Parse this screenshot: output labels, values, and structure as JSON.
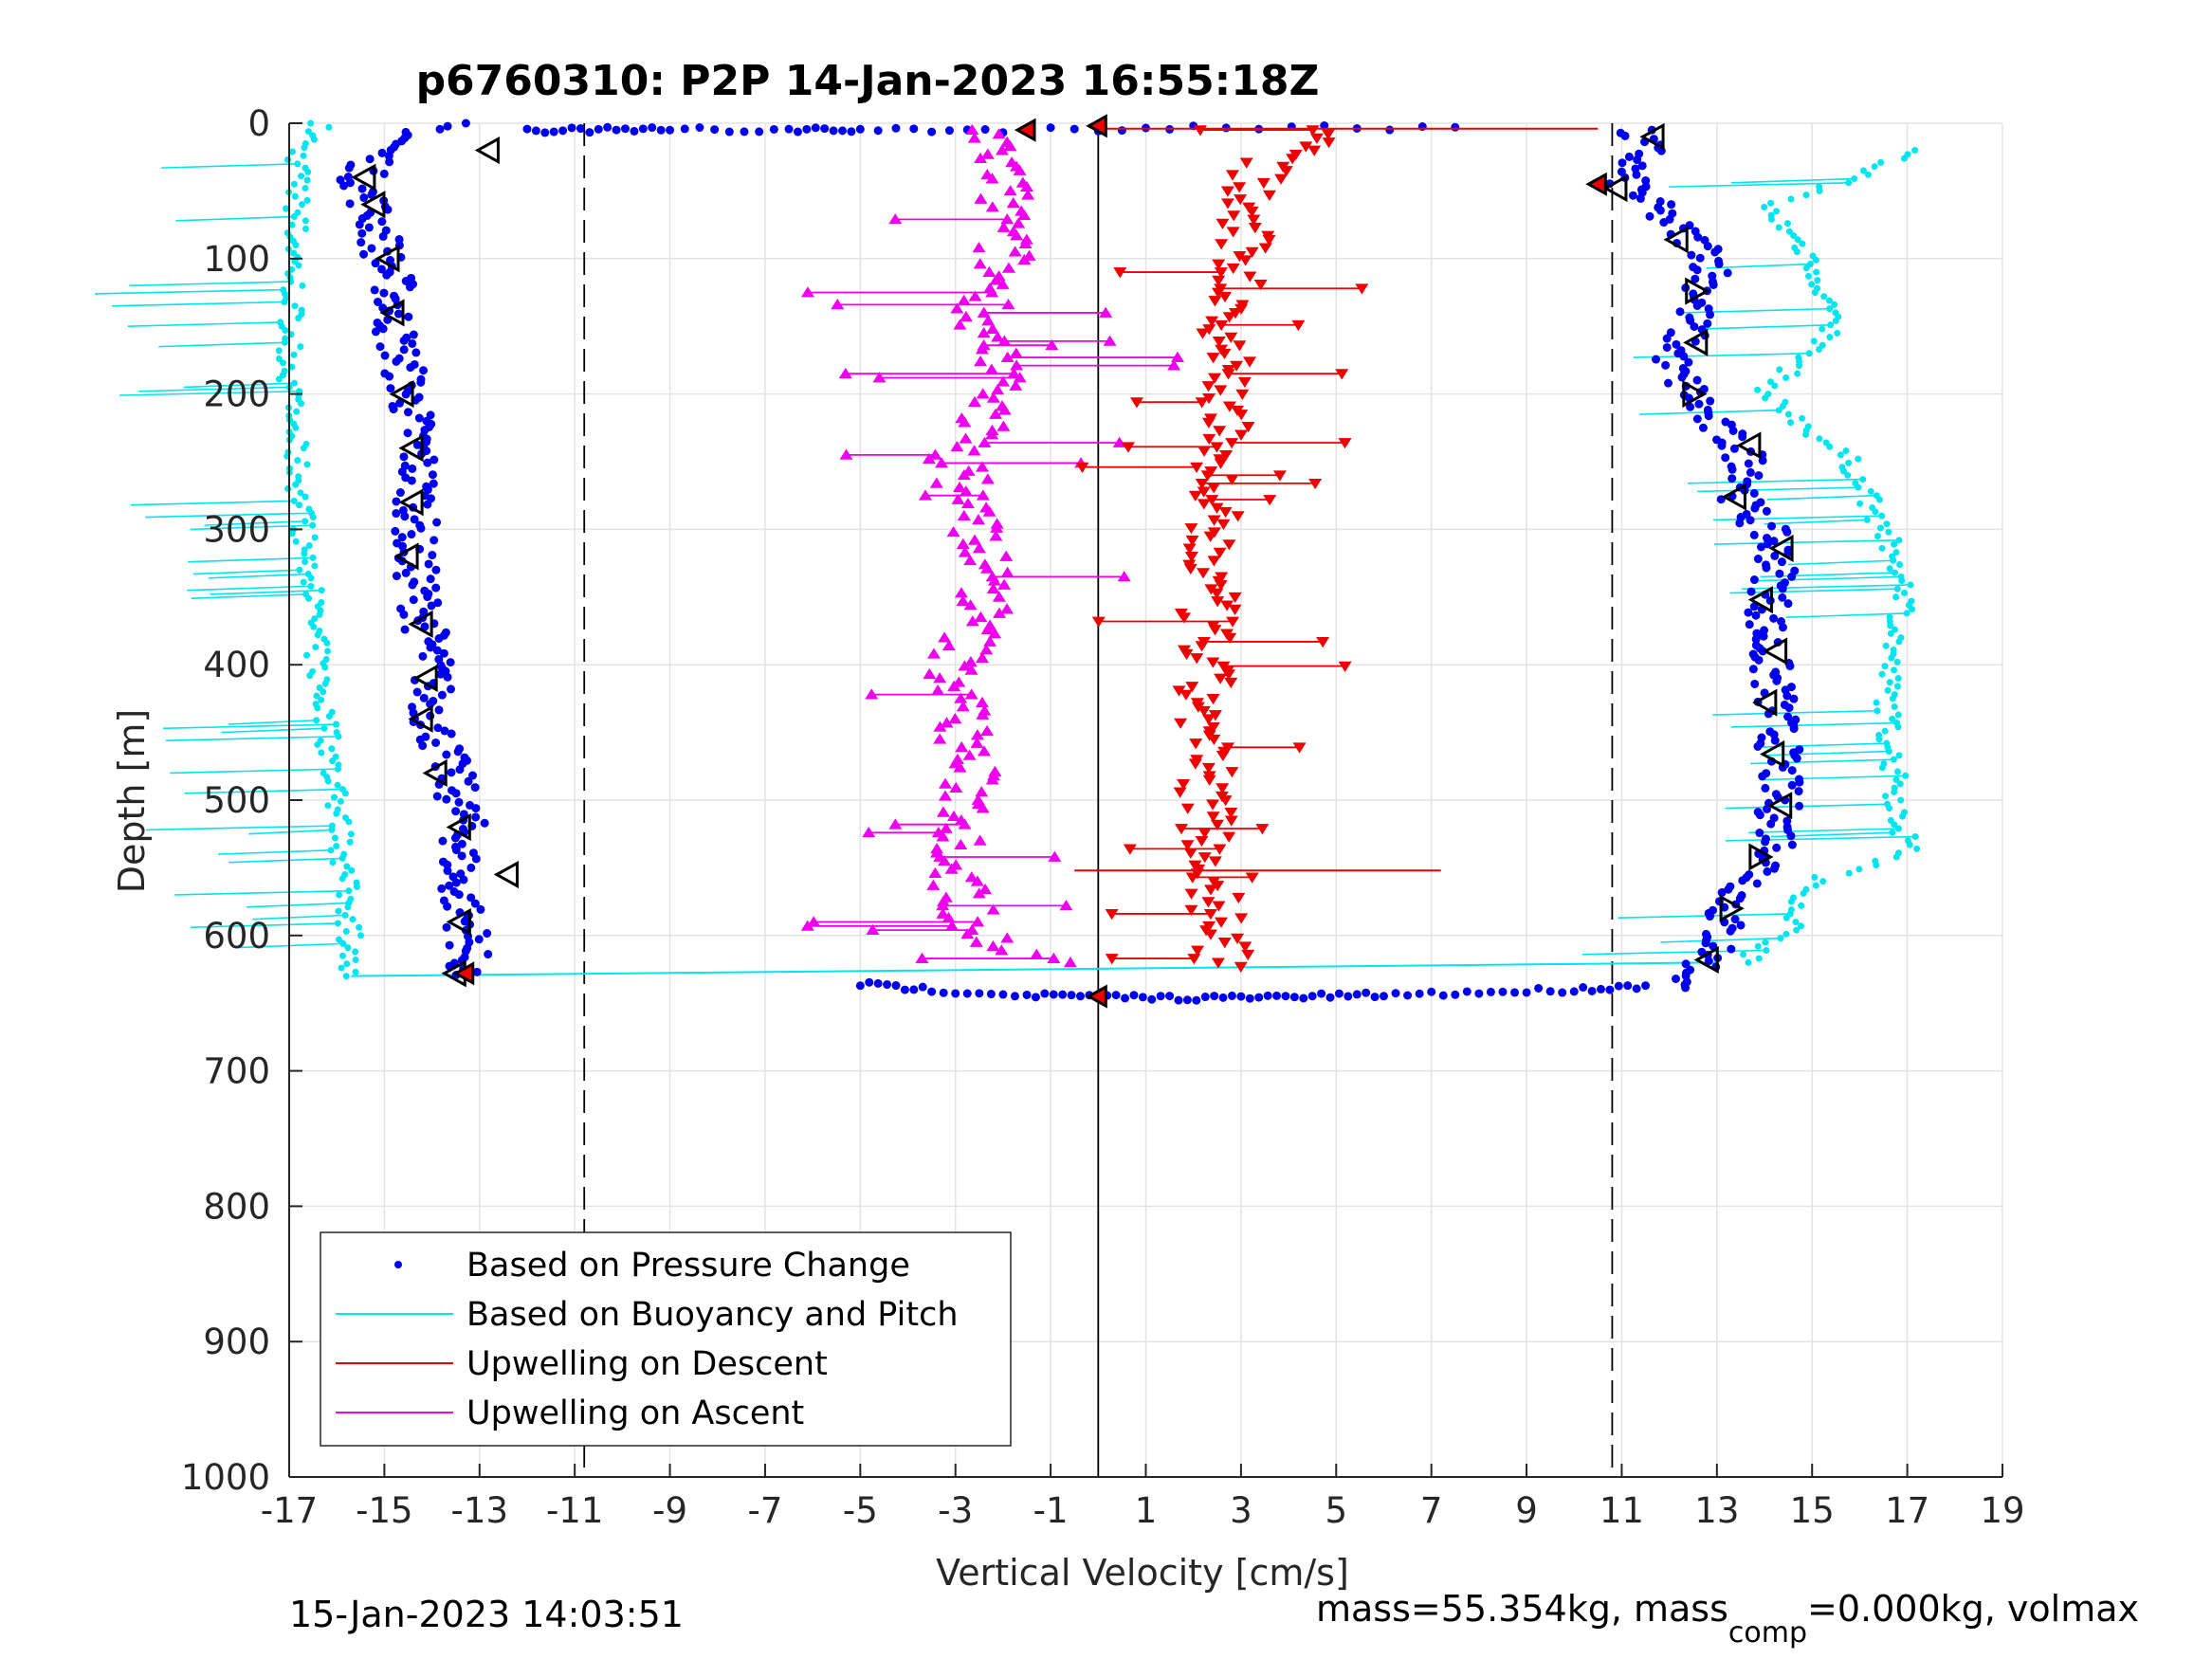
{
  "chart_data": {
    "type": "scatter",
    "title": "p6760310: P2P 14-Jan-2023 16:55:18Z",
    "xlabel": "Vertical Velocity [cm/s]",
    "ylabel": "Depth [m]",
    "xlim": [
      -17,
      19
    ],
    "ylim": [
      0,
      1000
    ],
    "y_reversed": true,
    "grid": true,
    "xticks": [
      -17,
      -15,
      -13,
      -11,
      -9,
      -7,
      -5,
      -3,
      -1,
      1,
      3,
      5,
      7,
      9,
      11,
      13,
      15,
      17,
      19
    ],
    "yticks": [
      0,
      100,
      200,
      300,
      400,
      500,
      600,
      700,
      800,
      900,
      1000
    ],
    "reference_lines": {
      "solid_x": 0,
      "dashed_x": [
        -10.8,
        10.8
      ]
    },
    "legend": {
      "placement": "bottom-left",
      "entries": [
        {
          "label": "Based on Pressure Change",
          "color": "#0000ee",
          "style": "dot"
        },
        {
          "label": "Based on Buoyancy and Pitch",
          "color": "#00e5ee",
          "style": "line"
        },
        {
          "label": "Upwelling on Descent",
          "color": "#ee0000",
          "style": "line"
        },
        {
          "label": "Upwelling on Ascent",
          "color": "#ee00ee",
          "style": "line"
        }
      ]
    },
    "series": [
      {
        "name": "Based on Pressure Change",
        "color": "#0000ee",
        "dives": [
          {
            "leg": "descent",
            "depth": [
              0,
              10,
              20,
              40,
              60,
              80,
              100,
              120,
              150,
              180,
              200,
              240,
              280,
              320,
              360,
              400,
              440,
              480,
              520,
              560,
              600,
              630
            ],
            "velocity": [
              -13.5,
              -14.5,
              -15.0,
              -15.5,
              -15.3,
              -15.1,
              -15.0,
              -14.8,
              -14.8,
              -14.6,
              -14.5,
              -14.3,
              -14.3,
              -14.4,
              -14.2,
              -14.0,
              -14.0,
              -13.6,
              -13.3,
              -13.5,
              -13.2,
              -13.3
            ]
          },
          {
            "leg": "ascent",
            "depth": [
              640,
              630,
              610,
              580,
              540,
              500,
              460,
              420,
              380,
              340,
              320,
              300,
              280,
              260,
              240,
              220,
              200,
              180,
              160,
              140,
              120,
              100,
              80,
              60,
              40,
              20,
              5
            ],
            "velocity": [
              12.0,
              12.5,
              13.0,
              13.2,
              14.3,
              14.3,
              14.3,
              14.2,
              14.0,
              14.2,
              14.3,
              14.0,
              13.5,
              13.8,
              13.5,
              12.8,
              12.5,
              12.0,
              12.3,
              12.5,
              12.8,
              13.0,
              12.2,
              11.6,
              11.0,
              11.5,
              11.2
            ]
          },
          {
            "leg": "turnaround",
            "depth": [
              636,
              640,
              644,
              645,
              646,
              646,
              645,
              644,
              642,
              640,
              637
            ],
            "velocity": [
              -5.0,
              -3.5,
              -1.5,
              0.0,
              1.5,
              3.0,
              4.5,
              6.0,
              8.0,
              10.0,
              11.5
            ]
          },
          {
            "leg": "surface",
            "depth": [
              5,
              5,
              5,
              5,
              5,
              5,
              3,
              3
            ],
            "velocity": [
              -12.0,
              -10.5,
              -9.0,
              -6.5,
              -5.0,
              -2.0,
              2.0,
              7.5
            ]
          }
        ]
      },
      {
        "name": "Based on Buoyancy and Pitch",
        "color": "#00e5ee",
        "dives": [
          {
            "leg": "descent",
            "depth": [
              0,
              20,
              200,
              300,
              400,
              500,
              600,
              630
            ],
            "velocity": [
              -16.3,
              -16.8,
              -17.0,
              -16.7,
              -16.4,
              -16.0,
              -15.7,
              -15.8
            ]
          },
          {
            "leg": "ascent",
            "depth": [
              620,
              600,
              560,
              540,
              500,
              450,
              400,
              350,
              300,
              250,
              200,
              150,
              100,
              60,
              40,
              20
            ],
            "velocity": [
              13.5,
              14.5,
              15.0,
              17.0,
              16.8,
              16.6,
              16.6,
              17.0,
              16.5,
              15.8,
              14.0,
              15.5,
              15.0,
              14.0,
              16.0,
              17.0
            ]
          }
        ]
      },
      {
        "name": "Upwelling on Descent",
        "color": "#ee0000",
        "depth": [
          5,
          30,
          60,
          100,
          150,
          200,
          250,
          300,
          350,
          400,
          450,
          500,
          550,
          600,
          625
        ],
        "velocity": [
          5.0,
          3.5,
          3.0,
          3.0,
          2.8,
          2.7,
          2.5,
          2.3,
          2.3,
          2.2,
          2.2,
          2.3,
          2.4,
          2.5,
          2.6
        ]
      },
      {
        "name": "Upwelling on Ascent",
        "color": "#ee00ee",
        "depth": [
          620,
          600,
          560,
          500,
          450,
          400,
          350,
          300,
          250,
          200,
          150,
          100,
          60,
          30,
          5
        ],
        "velocity": [
          -1.0,
          -2.5,
          -3.0,
          -2.7,
          -2.8,
          -3.0,
          -2.3,
          -2.5,
          -3.0,
          -2.0,
          -2.5,
          -2.0,
          -2.0,
          -2.0,
          -2.5
        ]
      },
      {
        "name": "",
        "marker": "open-triangle",
        "color": "#000000",
        "depth": [
          20,
          40,
          60,
          100,
          140,
          200,
          240,
          280,
          320,
          370,
          410,
          440,
          480,
          520,
          555,
          590,
          628
        ],
        "velocity": [
          -12.8,
          -15.4,
          -15.2,
          -14.9,
          -14.8,
          -14.6,
          -14.4,
          -14.4,
          -14.5,
          -14.2,
          -14.1,
          -14.2,
          -13.9,
          -13.4,
          -12.4,
          -13.4,
          -13.5
        ]
      }
    ]
  },
  "footer": {
    "timestamp": "15-Jan-2023 14:03:51",
    "mass_text": "mass=55.354kg, mass",
    "mass_sub": "comp",
    "mass_rest": "=0.000kg, volmax"
  }
}
